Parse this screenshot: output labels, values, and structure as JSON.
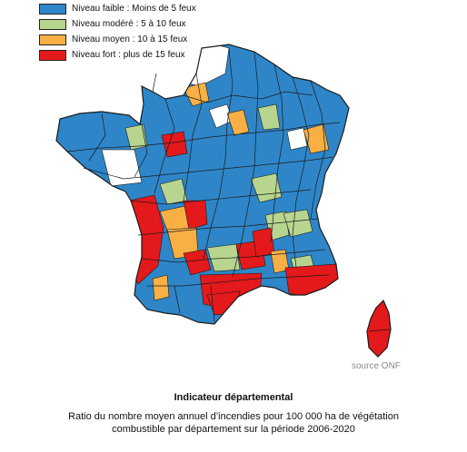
{
  "legend": {
    "items": [
      {
        "label": "Niveau faible : Moins de 5 feux",
        "color": "#2e86c8"
      },
      {
        "label": "Niveau modéré : 5 à 10 feux",
        "color": "#b7d58f"
      },
      {
        "label": "Niveau moyen : 10 à 15 feux",
        "color": "#f8b044"
      },
      {
        "label": "Niveau fort : plus de 15 feux",
        "color": "#e3191b"
      }
    ]
  },
  "map": {
    "no_data_color": "#ffffff",
    "border_color": "#1b1b1b"
  },
  "source": "source ONF",
  "title": "Indicateur départemental",
  "caption": {
    "line1": "Ratio du nombre moyen annuel d’incendies pour 100 000 ha de végétation",
    "line2": "combustible par département sur la période 2006-2020"
  }
}
